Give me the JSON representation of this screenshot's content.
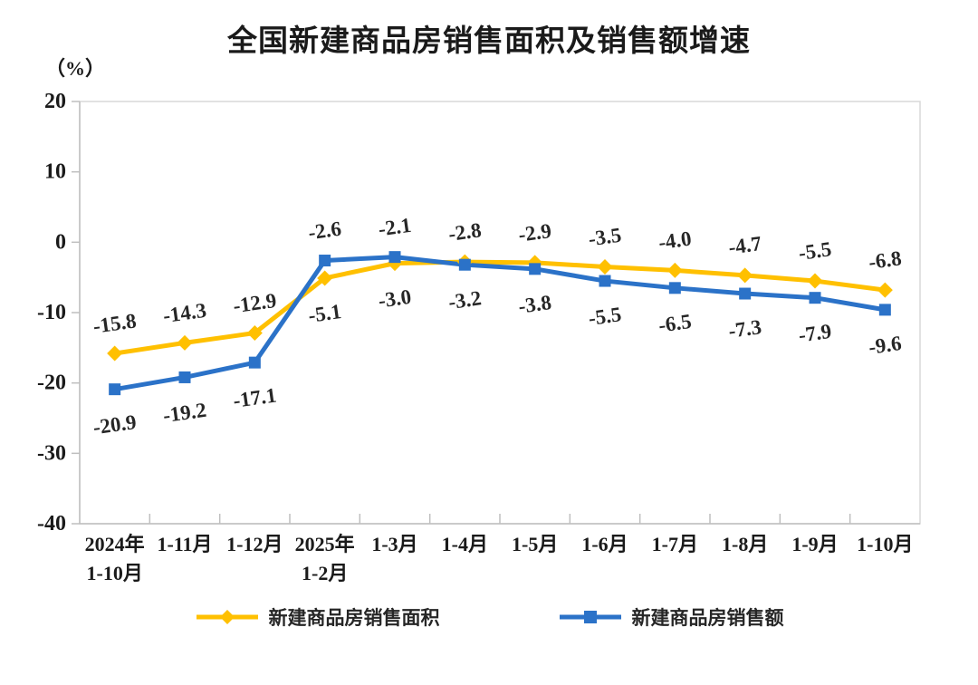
{
  "page": {
    "background": "#ffffff"
  },
  "chart_data": {
    "type": "line",
    "title": "全国新建商品房销售面积及销售额增速",
    "unit_label": "（%）",
    "categories": [
      [
        "2024年",
        "1-10月"
      ],
      [
        "1-11月"
      ],
      [
        "1-12月"
      ],
      [
        "2025年",
        "1-2月"
      ],
      [
        "1-3月"
      ],
      [
        "1-4月"
      ],
      [
        "1-5月"
      ],
      [
        "1-6月"
      ],
      [
        "1-7月"
      ],
      [
        "1-8月"
      ],
      [
        "1-9月"
      ],
      [
        "1-10月"
      ]
    ],
    "series": [
      {
        "name": "新建商品房销售面积",
        "marker": "diamond",
        "color": "#FFC000",
        "values": [
          -15.8,
          -14.3,
          -12.9,
          -5.1,
          -3.0,
          -2.8,
          -2.9,
          -3.5,
          -4.0,
          -4.7,
          -5.5,
          -6.8
        ]
      },
      {
        "name": "新建商品房销售额",
        "marker": "square",
        "color": "#2B72C8",
        "values": [
          -20.9,
          -19.2,
          -17.1,
          -2.6,
          -2.1,
          -3.2,
          -3.8,
          -5.5,
          -6.5,
          -7.3,
          -7.9,
          -9.6
        ]
      }
    ],
    "y_axis": {
      "min": -40,
      "max": 20,
      "step": 10,
      "ticks": [
        20,
        10,
        0,
        -10,
        -20,
        -30,
        -40
      ]
    },
    "xlabel": "",
    "ylabel": "（%）",
    "grid": false,
    "legend_position": "bottom",
    "colors": {
      "plot_border": "#d9d9d9",
      "axis": "#bfbfbf",
      "label_text": "#262626"
    }
  }
}
